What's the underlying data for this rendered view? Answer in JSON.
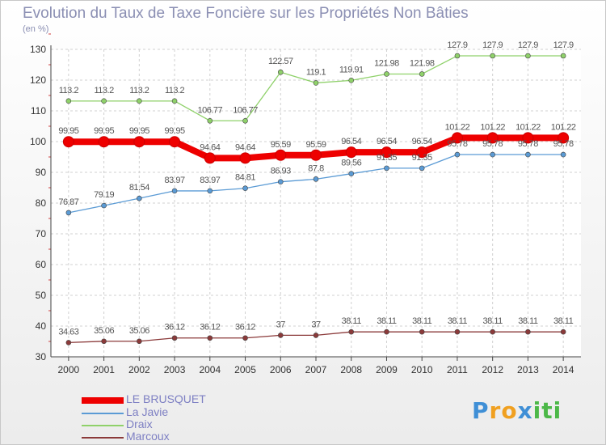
{
  "title": "Evolution du Taux de Taxe Foncière sur les Propriétés Non Bâties",
  "unit": "(en %)",
  "logo": {
    "parts": [
      "P",
      "r",
      "o",
      "x",
      "i",
      "t",
      "i"
    ],
    "colors": [
      "#3f8fd6",
      "#f0a020",
      "#f0a020",
      "#3f8fd6",
      "#4cb848",
      "#4cb848",
      "#4cb848"
    ]
  },
  "chart_data": {
    "type": "line",
    "x": [
      "2000",
      "2001",
      "2002",
      "2003",
      "2004",
      "2005",
      "2006",
      "2007",
      "2008",
      "2009",
      "2010",
      "2011",
      "2012",
      "2013",
      "2014"
    ],
    "ylim": [
      30,
      130
    ],
    "yticks": [
      30,
      40,
      50,
      60,
      70,
      80,
      90,
      100,
      110,
      120,
      130
    ],
    "grid": true,
    "legend_position": "bottom-left",
    "series": [
      {
        "name": "LE BRUSQUET",
        "color": "#ee0000",
        "width": 8,
        "values": [
          99.95,
          99.95,
          99.95,
          99.95,
          94.64,
          94.64,
          95.59,
          95.59,
          96.54,
          96.54,
          96.54,
          101.22,
          101.22,
          101.22,
          101.22
        ],
        "labels": [
          "99.95",
          "99.95",
          "99.95",
          "99.95",
          "94.64",
          "94.64",
          "95.59",
          "95.59",
          "96.54",
          "96.54",
          "96.54",
          "101.22",
          "101.22",
          "101.22",
          "101.22"
        ]
      },
      {
        "name": "La Javie",
        "color": "#5b9bd5",
        "width": 1.3,
        "values": [
          76.87,
          79.19,
          81.54,
          83.97,
          83.97,
          84.81,
          86.93,
          87.8,
          89.56,
          91.35,
          91.35,
          95.78,
          95.78,
          95.78,
          95.78
        ],
        "labels": [
          "76.87",
          "79.19",
          "81.54",
          "83.97",
          "83.97",
          "84.81",
          "86.93",
          "87.8",
          "89.56",
          "91.35",
          "91.35",
          "95.78",
          "95.78",
          "95.78",
          "95.78"
        ]
      },
      {
        "name": "Draix",
        "color": "#8fd16a",
        "width": 1.3,
        "values": [
          113.2,
          113.2,
          113.2,
          113.2,
          106.77,
          106.77,
          122.57,
          119.1,
          119.91,
          121.98,
          121.98,
          127.9,
          127.9,
          127.9,
          127.9
        ],
        "labels": [
          "113.2",
          "113.2",
          "113.2",
          "113.2",
          "106.77",
          "106.77",
          "122.57",
          "119.1",
          "119.91",
          "121.98",
          "121.98",
          "127.9",
          "127.9",
          "127.9",
          "127.9"
        ]
      },
      {
        "name": "Marcoux",
        "color": "#8b3a3a",
        "width": 1.3,
        "values": [
          34.63,
          35.06,
          35.06,
          36.12,
          36.12,
          36.12,
          37,
          37,
          38.11,
          38.11,
          38.11,
          38.11,
          38.11,
          38.11,
          38.11
        ],
        "labels": [
          "34.63",
          "35.06",
          "35.06",
          "36.12",
          "36.12",
          "36.12",
          "37",
          "37",
          "38.11",
          "38.11",
          "38.11",
          "38.11",
          "38.11",
          "38.11",
          "38.11"
        ]
      }
    ]
  }
}
